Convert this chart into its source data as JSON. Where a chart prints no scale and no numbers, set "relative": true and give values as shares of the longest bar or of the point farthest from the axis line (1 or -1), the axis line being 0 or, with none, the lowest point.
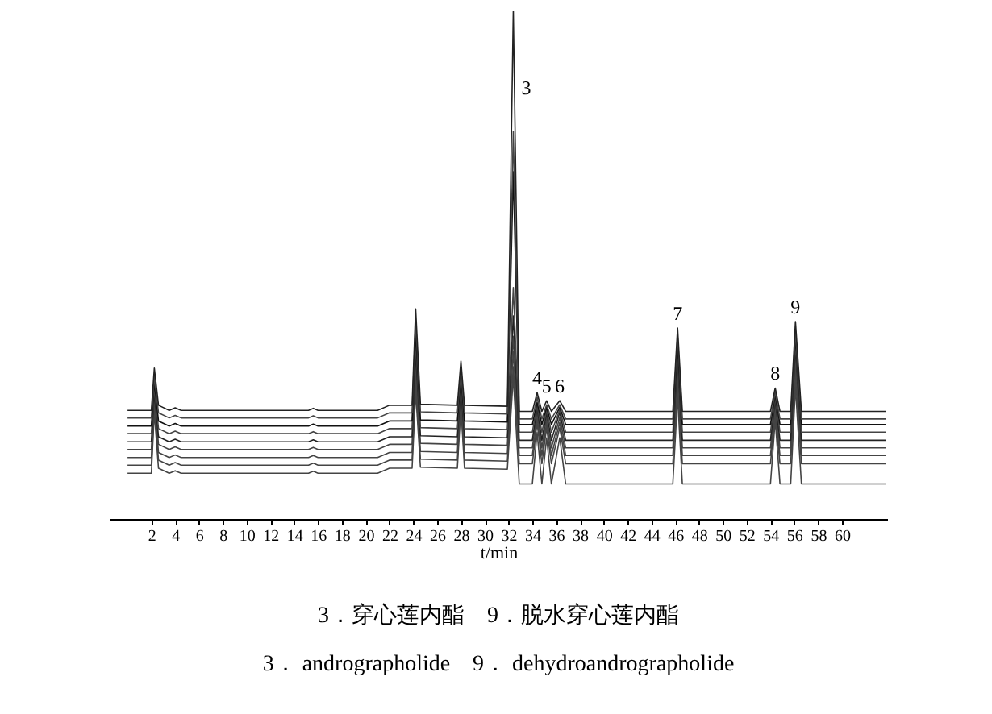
{
  "chart_data": {
    "type": "line",
    "relative": true,
    "xlabel": "t/min",
    "tick_labels": "x",
    "grid": false,
    "marker": "none",
    "line_style": "solid",
    "xlim": [
      -1.5,
      63.8
    ],
    "xticks": [
      2,
      4,
      6,
      8,
      10,
      12,
      14,
      16,
      18,
      20,
      22,
      24,
      26,
      28,
      30,
      32,
      34,
      36,
      38,
      40,
      42,
      44,
      46,
      48,
      50,
      52,
      54,
      56,
      58,
      60
    ],
    "x": [
      0,
      2.0,
      2.25,
      2.6,
      3.5,
      4.0,
      4.5,
      15.2,
      15.6,
      16.0,
      21.0,
      22.0,
      23.9,
      24.2,
      24.6,
      27.7,
      28.0,
      28.3,
      31.9,
      32.4,
      32.9,
      34.0,
      34.4,
      34.8,
      35.2,
      35.6,
      36.3,
      36.8,
      45.8,
      46.2,
      46.6,
      54.0,
      54.4,
      54.8,
      55.7,
      56.1,
      56.6,
      63.7
    ],
    "series": [
      {
        "color": "#444444",
        "values": [
          0.09,
          0.09,
          0.21,
          0.1,
          0.09,
          0.095,
          0.09,
          0.09,
          0.094,
          0.09,
          0.09,
          0.1,
          0.1,
          0.25,
          0.102,
          0.1,
          0.22,
          0.1,
          0.098,
          0.28,
          0.069,
          0.069,
          0.17,
          0.069,
          0.16,
          0.069,
          0.16,
          0.069,
          0.069,
          0.24,
          0.069,
          0.069,
          0.195,
          0.069,
          0.069,
          0.26,
          0.069,
          0.069
        ]
      },
      {
        "color": "#444444",
        "values": [
          0.106,
          0.106,
          0.22,
          0.116,
          0.106,
          0.111,
          0.106,
          0.106,
          0.11,
          0.106,
          0.106,
          0.116,
          0.116,
          0.27,
          0.118,
          0.116,
          0.23,
          0.116,
          0.114,
          0.3,
          0.109,
          0.109,
          0.19,
          0.109,
          0.18,
          0.109,
          0.18,
          0.109,
          0.109,
          0.26,
          0.109,
          0.109,
          0.205,
          0.109,
          0.109,
          0.28,
          0.109,
          0.109
        ]
      },
      {
        "color": "#444444",
        "values": [
          0.121,
          0.121,
          0.23,
          0.131,
          0.121,
          0.126,
          0.121,
          0.121,
          0.125,
          0.121,
          0.121,
          0.131,
          0.131,
          0.29,
          0.133,
          0.131,
          0.24,
          0.131,
          0.129,
          0.33,
          0.125,
          0.125,
          0.2,
          0.125,
          0.19,
          0.125,
          0.19,
          0.125,
          0.125,
          0.28,
          0.125,
          0.125,
          0.215,
          0.125,
          0.125,
          0.3,
          0.125,
          0.125
        ]
      },
      {
        "color": "#444444",
        "values": [
          0.137,
          0.137,
          0.24,
          0.147,
          0.137,
          0.142,
          0.137,
          0.137,
          0.141,
          0.137,
          0.137,
          0.147,
          0.147,
          0.31,
          0.149,
          0.147,
          0.25,
          0.147,
          0.145,
          0.36,
          0.14,
          0.14,
          0.21,
          0.14,
          0.2,
          0.14,
          0.2,
          0.14,
          0.14,
          0.3,
          0.14,
          0.14,
          0.225,
          0.14,
          0.14,
          0.32,
          0.14,
          0.14
        ]
      },
      {
        "color": "#222222",
        "values": [
          0.152,
          0.152,
          0.25,
          0.162,
          0.152,
          0.157,
          0.152,
          0.152,
          0.156,
          0.152,
          0.152,
          0.162,
          0.162,
          0.33,
          0.164,
          0.162,
          0.26,
          0.162,
          0.16,
          0.4,
          0.155,
          0.155,
          0.22,
          0.155,
          0.21,
          0.155,
          0.21,
          0.155,
          0.155,
          0.32,
          0.155,
          0.155,
          0.235,
          0.155,
          0.155,
          0.34,
          0.155,
          0.155
        ]
      },
      {
        "color": "#444444",
        "values": [
          0.168,
          0.168,
          0.26,
          0.178,
          0.168,
          0.173,
          0.168,
          0.168,
          0.172,
          0.168,
          0.168,
          0.178,
          0.178,
          0.35,
          0.18,
          0.178,
          0.27,
          0.178,
          0.176,
          0.456,
          0.171,
          0.171,
          0.225,
          0.171,
          0.215,
          0.171,
          0.215,
          0.171,
          0.171,
          0.33,
          0.171,
          0.171,
          0.24,
          0.171,
          0.171,
          0.35,
          0.171,
          0.171
        ]
      },
      {
        "color": "#111111",
        "values": [
          0.183,
          0.183,
          0.27,
          0.193,
          0.183,
          0.188,
          0.183,
          0.183,
          0.187,
          0.183,
          0.183,
          0.193,
          0.193,
          0.37,
          0.195,
          0.193,
          0.28,
          0.193,
          0.191,
          0.684,
          0.186,
          0.186,
          0.23,
          0.186,
          0.22,
          0.186,
          0.22,
          0.186,
          0.186,
          0.34,
          0.186,
          0.186,
          0.245,
          0.186,
          0.186,
          0.36,
          0.186,
          0.186
        ]
      },
      {
        "color": "#444444",
        "values": [
          0.199,
          0.199,
          0.28,
          0.209,
          0.199,
          0.204,
          0.199,
          0.199,
          0.203,
          0.199,
          0.199,
          0.209,
          0.209,
          0.39,
          0.211,
          0.209,
          0.29,
          0.209,
          0.207,
          0.764,
          0.197,
          0.197,
          0.24,
          0.197,
          0.225,
          0.197,
          0.225,
          0.197,
          0.197,
          0.36,
          0.197,
          0.197,
          0.25,
          0.197,
          0.197,
          0.37,
          0.197,
          0.197
        ]
      },
      {
        "color": "#222222",
        "values": [
          0.214,
          0.214,
          0.297,
          0.224,
          0.214,
          0.219,
          0.214,
          0.214,
          0.218,
          0.214,
          0.214,
          0.224,
          0.224,
          0.414,
          0.226,
          0.224,
          0.311,
          0.224,
          0.222,
          1.0,
          0.212,
          0.212,
          0.249,
          0.212,
          0.233,
          0.212,
          0.233,
          0.212,
          0.212,
          0.376,
          0.212,
          0.212,
          0.258,
          0.212,
          0.212,
          0.389,
          0.212,
          0.212
        ]
      }
    ],
    "annotations": [
      {
        "text": "3",
        "x": 32.4,
        "y": 0.85
      },
      {
        "text": "4",
        "x": 34.4,
        "y": 0.249
      },
      {
        "text": "5",
        "x": 35.2,
        "y": 0.233
      },
      {
        "text": "6",
        "x": 36.3,
        "y": 0.233
      },
      {
        "text": "7",
        "x": 46.2,
        "y": 0.376
      },
      {
        "text": "8",
        "x": 54.4,
        "y": 0.258
      },
      {
        "text": "9",
        "x": 56.1,
        "y": 0.389
      },
      "3．穿心莲内酯　9．脱水穿心莲内酯",
      "3． andrographolide　9． dehydroandrographolide"
    ]
  }
}
